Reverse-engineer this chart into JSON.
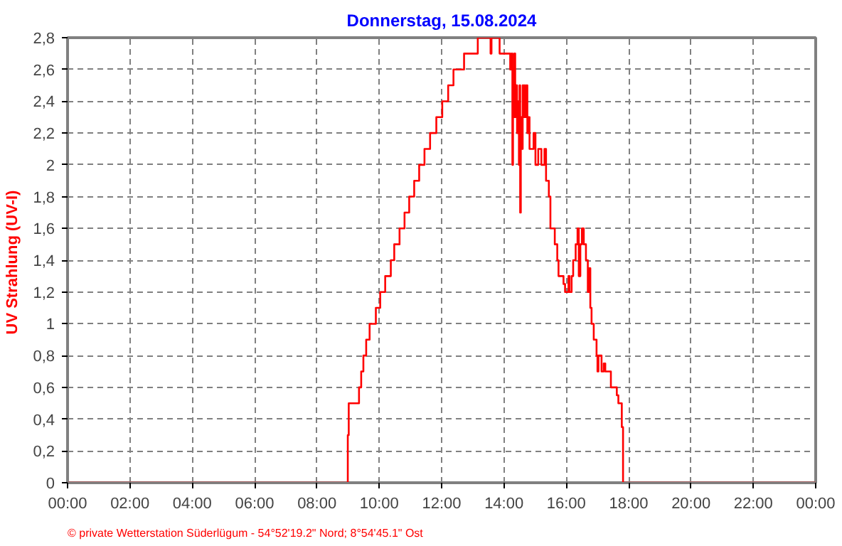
{
  "chart_data": {
    "type": "step",
    "title": "Donnerstag, 15.08.2024",
    "ylabel": "UV Strahlung  (UV-I)",
    "annotations": [
      "© private Wetterstation Süderlügum  -  54°52'19.2\" Nord; 8°54'45.1\" Ost"
    ],
    "xlim": [
      0,
      24
    ],
    "ylim": [
      0,
      2.8
    ],
    "xticks": [
      {
        "value": 0,
        "label": "00:00"
      },
      {
        "value": 2,
        "label": "02:00"
      },
      {
        "value": 4,
        "label": "04:00"
      },
      {
        "value": 6,
        "label": "06:00"
      },
      {
        "value": 8,
        "label": "08:00"
      },
      {
        "value": 10,
        "label": "10:00"
      },
      {
        "value": 12,
        "label": "12:00"
      },
      {
        "value": 14,
        "label": "14:00"
      },
      {
        "value": 16,
        "label": "16:00"
      },
      {
        "value": 18,
        "label": "18:00"
      },
      {
        "value": 20,
        "label": "20:00"
      },
      {
        "value": 22,
        "label": "22:00"
      },
      {
        "value": 24,
        "label": "00:00"
      }
    ],
    "yticks": [
      0,
      {
        "value": 0.2,
        "label": "0,2"
      },
      {
        "value": 0.4,
        "label": "0,4"
      },
      {
        "value": 0.6,
        "label": "0,6"
      },
      {
        "value": 0.8,
        "label": "0,8"
      },
      1,
      {
        "value": 1.2,
        "label": "1,2"
      },
      {
        "value": 1.4,
        "label": "1,4"
      },
      {
        "value": 1.6,
        "label": "1,6"
      },
      {
        "value": 1.8,
        "label": "1,8"
      },
      2,
      {
        "value": 2.2,
        "label": "2,2"
      },
      {
        "value": 2.4,
        "label": "2,4"
      },
      {
        "value": 2.6,
        "label": "2,6"
      },
      {
        "value": 2.8,
        "label": "2,8"
      }
    ],
    "grid": true,
    "line_style": "solid",
    "series": [
      {
        "color": "#ff0000",
        "x": [
          0,
          8.99,
          9.02,
          9.35,
          9.42,
          9.49,
          9.58,
          9.69,
          9.89,
          10.03,
          10.19,
          10.37,
          10.48,
          10.65,
          10.81,
          10.96,
          11.12,
          11.28,
          11.45,
          11.63,
          11.83,
          12.02,
          12.21,
          12.38,
          12.72,
          13.16,
          13.57,
          13.6,
          13.86,
          14.04,
          14.2,
          14.25,
          14.27,
          14.29,
          14.31,
          14.33,
          14.36,
          14.39,
          14.42,
          14.45,
          14.48,
          14.5,
          14.52,
          14.54,
          14.57,
          14.6,
          14.63,
          14.66,
          14.68,
          14.72,
          14.75,
          14.78,
          14.82,
          14.95,
          15.01,
          15.1,
          15.2,
          15.3,
          15.35,
          15.44,
          15.49,
          15.57,
          15.63,
          15.71,
          15.75,
          15.91,
          15.96,
          16.07,
          16.1,
          16.17,
          16.22,
          16.3,
          16.36,
          16.4,
          16.45,
          16.5,
          16.56,
          16.63,
          16.69,
          16.72,
          16.77,
          16.81,
          16.88,
          16.97,
          17.0,
          17.03,
          17.08,
          17.13,
          17.2,
          17.25,
          17.43,
          17.62,
          17.67,
          17.78,
          17.82,
          24
        ],
        "values": [
          0,
          0.3,
          0.5,
          0.6,
          0.7,
          0.8,
          0.9,
          1.0,
          1.1,
          1.2,
          1.3,
          1.4,
          1.5,
          1.6,
          1.7,
          1.8,
          1.9,
          2.0,
          2.1,
          2.2,
          2.3,
          2.4,
          2.5,
          2.6,
          2.7,
          2.8,
          2.7,
          2.8,
          2.7,
          2.7,
          2.6,
          2.7,
          2.0,
          2.5,
          2.3,
          2.7,
          2.3,
          2.5,
          2.2,
          2.4,
          2.0,
          2.5,
          1.7,
          2.3,
          2.1,
          2.5,
          2.3,
          2.5,
          2.3,
          2.5,
          2.2,
          2.3,
          2.1,
          2.2,
          2.0,
          2.1,
          2.0,
          2.1,
          1.9,
          1.8,
          1.6,
          1.6,
          1.5,
          1.4,
          1.3,
          1.25,
          1.2,
          1.3,
          1.2,
          1.3,
          1.4,
          1.5,
          1.6,
          1.3,
          1.5,
          1.6,
          1.5,
          1.4,
          1.2,
          1.35,
          1.1,
          1.0,
          0.9,
          0.8,
          0.7,
          0.8,
          0.8,
          0.7,
          0.75,
          0.7,
          0.6,
          0.55,
          0.5,
          0.35,
          0,
          0
        ]
      }
    ]
  }
}
